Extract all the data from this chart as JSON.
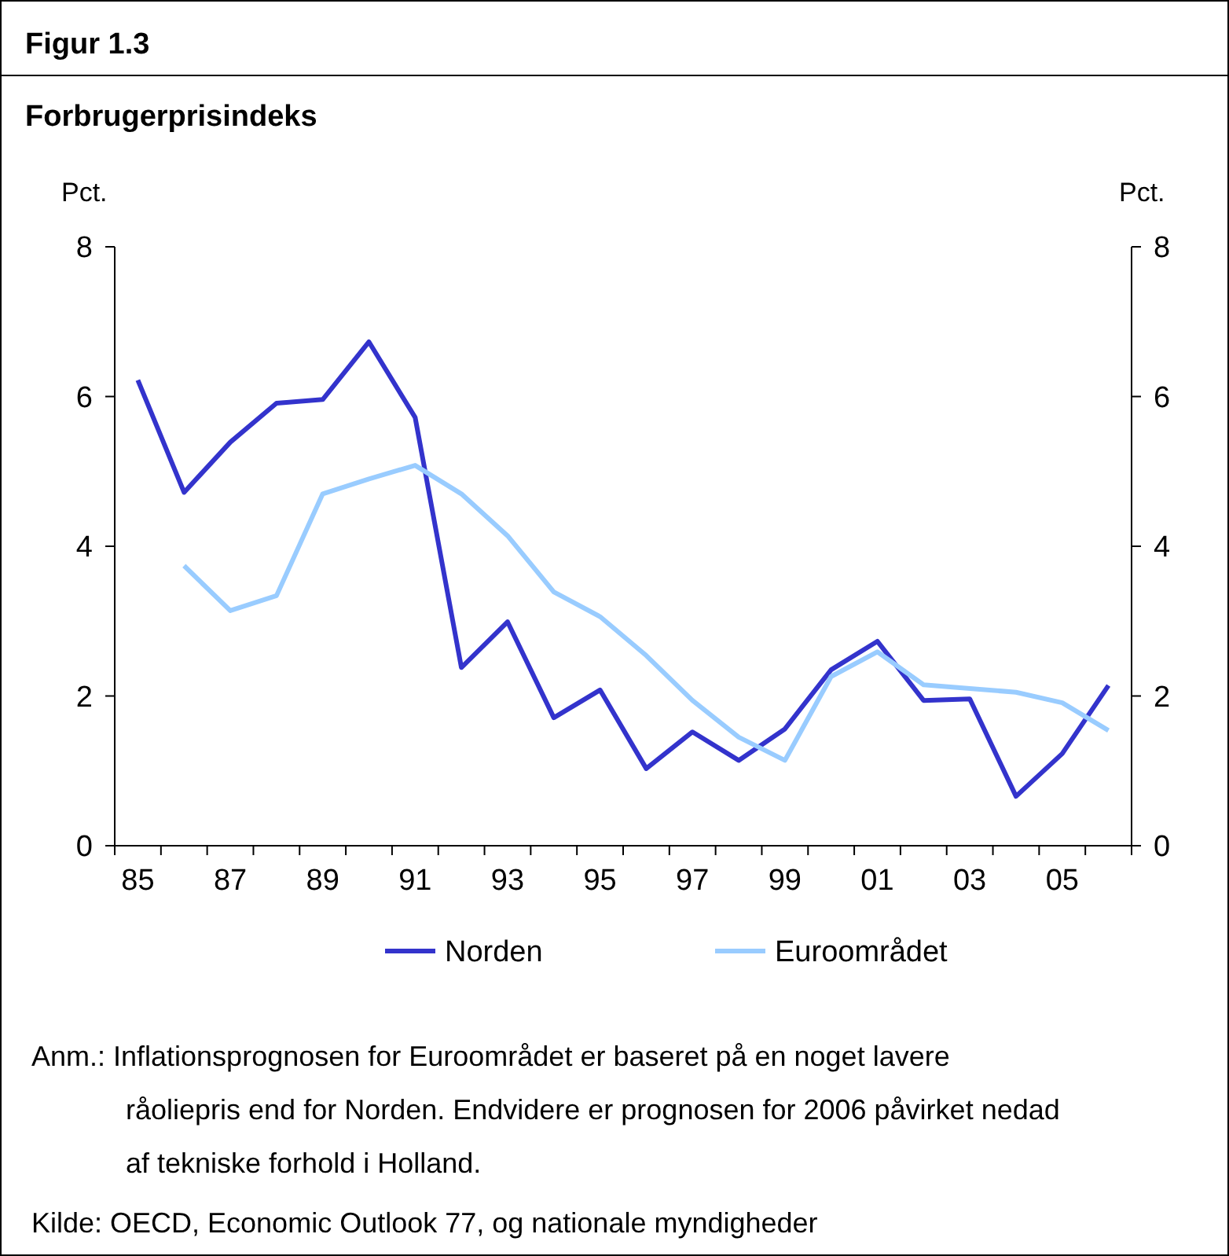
{
  "chart_data": {
    "type": "line",
    "title": "Figur 1.3",
    "subtitle": "Forbrugerprisindeks",
    "ylabel": "Pct.",
    "y2label": "Pct.",
    "categories": [
      "85",
      null,
      "87",
      null,
      "89",
      null,
      "91",
      null,
      "93",
      null,
      "95",
      null,
      "97",
      null,
      "99",
      null,
      "01",
      null,
      "03",
      null,
      "05",
      null
    ],
    "series": [
      {
        "name": "Norden",
        "color": "#3333cc",
        "values": [
          6.22,
          4.72,
          5.39,
          5.91,
          5.96,
          6.73,
          5.72,
          2.38,
          2.99,
          1.71,
          2.08,
          1.03,
          1.52,
          1.14,
          1.56,
          2.35,
          2.73,
          1.94,
          1.96,
          0.66,
          1.23,
          2.14
        ]
      },
      {
        "name": "Euroområdet",
        "color": "#99ccff",
        "values": [
          null,
          3.74,
          3.14,
          3.34,
          4.7,
          4.9,
          5.08,
          4.7,
          4.14,
          3.39,
          3.06,
          2.54,
          1.94,
          1.45,
          1.14,
          2.26,
          2.59,
          2.15,
          2.1,
          2.05,
          1.91,
          1.54
        ]
      }
    ],
    "ylim": [
      0,
      8
    ],
    "yticks": [
      0,
      2,
      4,
      6,
      8
    ],
    "y2lim": [
      0,
      8
    ],
    "y2ticks": [
      0,
      2,
      4,
      6,
      8
    ],
    "grid": false,
    "legend": "bottom",
    "marker": "none",
    "line_style": "solid",
    "annotations": [
      "Anm.: Inflationsprognosen for Euroområdet er baseret på en noget lavere råoliepris end for Norden. Endvidere er prognosen for 2006 påvirket nedad af tekniske forhold i Holland.",
      "Kilde: OECD, Economic Outlook 77, og nationale myndigheder"
    ]
  }
}
